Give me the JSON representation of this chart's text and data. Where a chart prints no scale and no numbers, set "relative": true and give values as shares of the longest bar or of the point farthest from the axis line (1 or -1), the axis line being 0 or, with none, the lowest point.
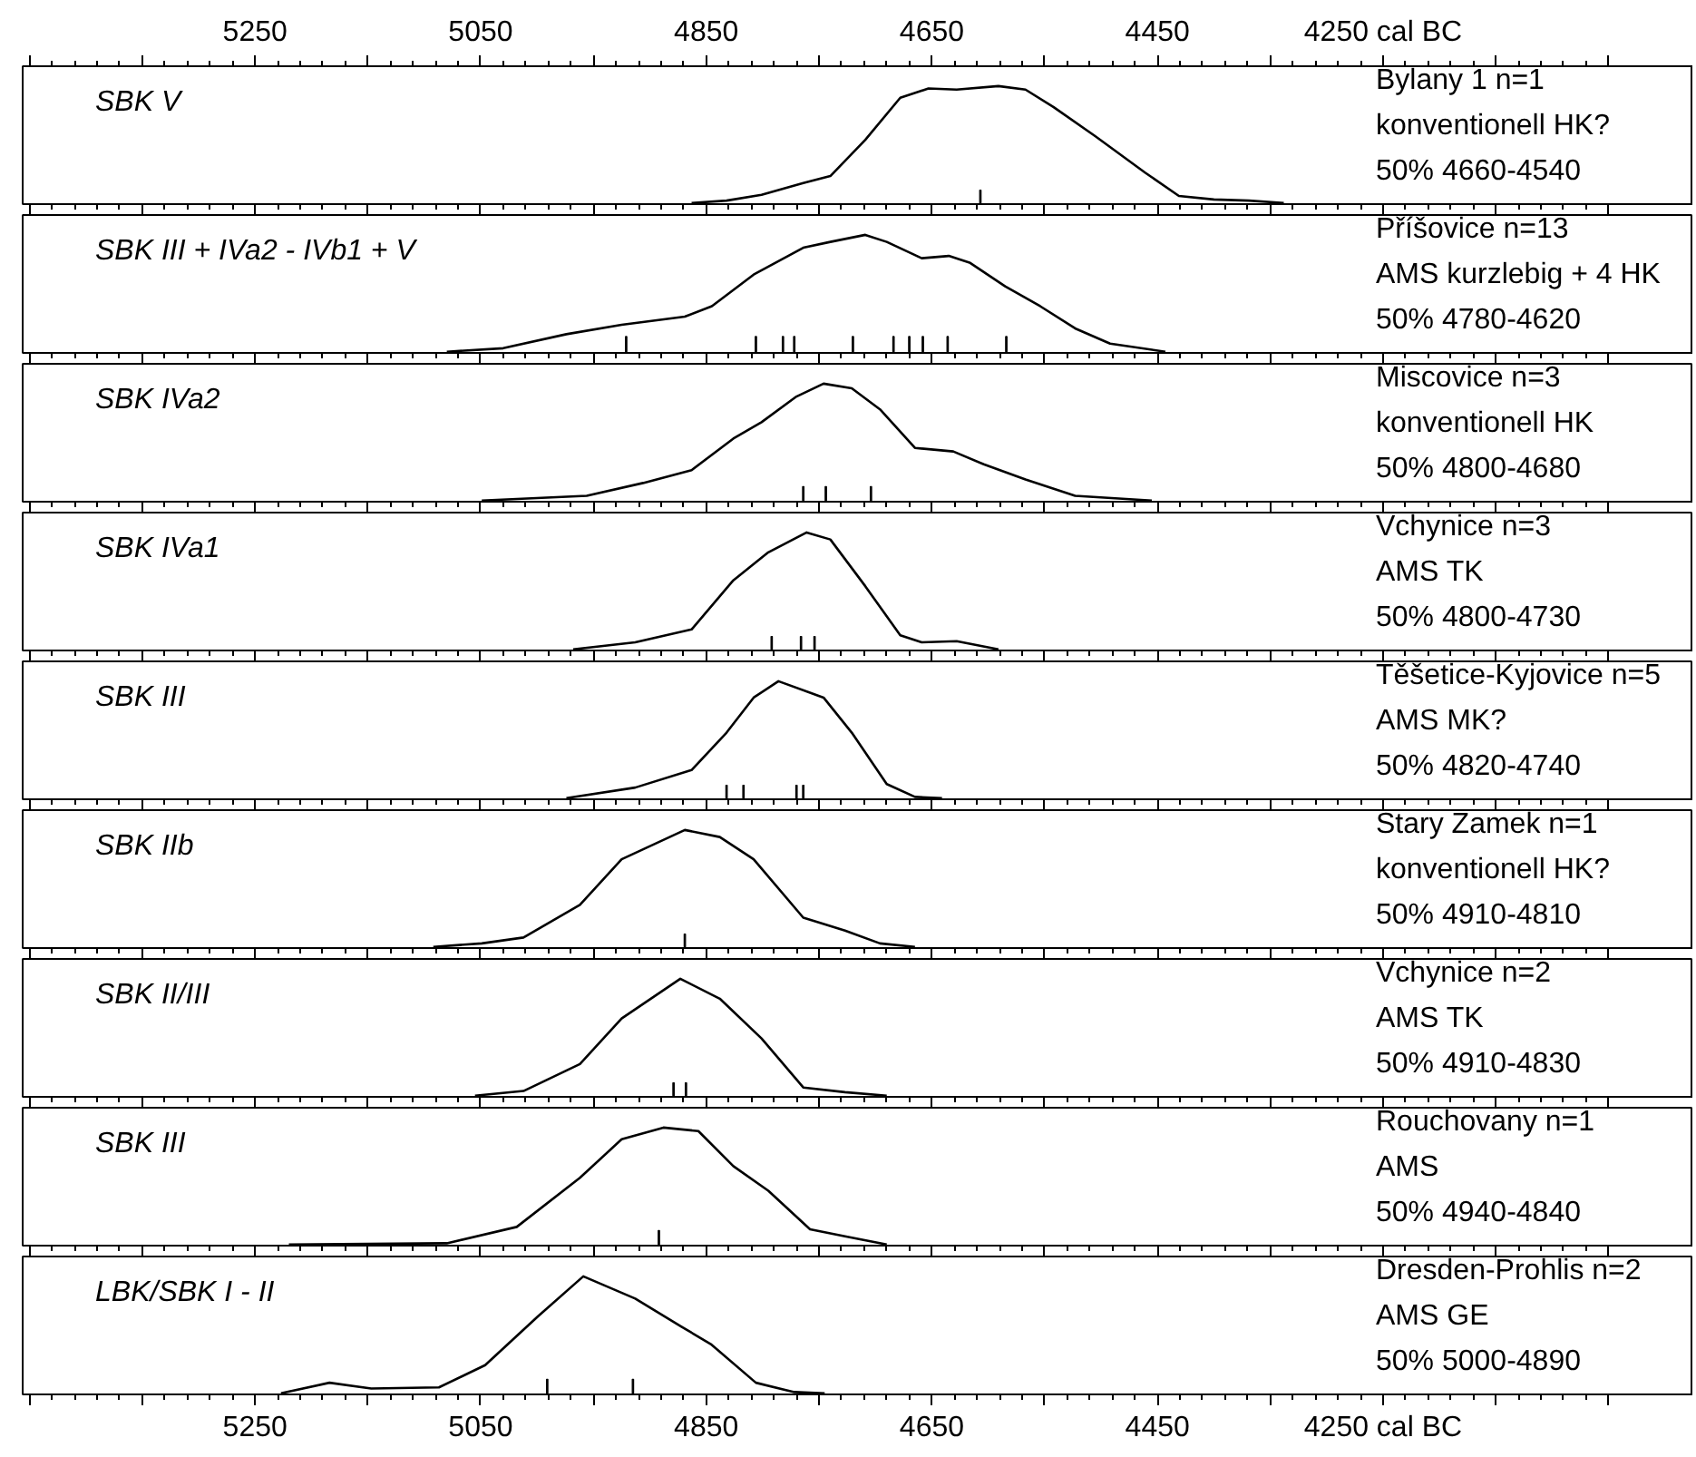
{
  "chart_data": [
    {
      "type": "line",
      "title": "SBK V",
      "annotations": [
        "Bylany 1  n=1",
        "konventionell HK?",
        "50% 4660-4540"
      ],
      "relative": true,
      "xlim": [
        5456,
        3975
      ],
      "tick_labels": "x",
      "xticks": [
        {
          "value": 5450,
          "label": null
        },
        {
          "value": 5350,
          "label": null
        },
        5250,
        {
          "value": 5150,
          "label": null
        },
        5050,
        {
          "value": 4950,
          "label": null
        },
        4850,
        {
          "value": 4750,
          "label": null
        },
        4650,
        {
          "value": 4550,
          "label": null
        },
        4450,
        {
          "value": 4350,
          "label": null
        },
        {
          "value": 4250,
          "label": "4250 cal BC"
        },
        {
          "value": 4150,
          "label": null
        },
        {
          "value": 4050,
          "label": null
        }
      ],
      "series": [
        {
          "color": "#000000",
          "x": [
            4863,
            4832,
            4801,
            4764,
            4740,
            4709,
            4678,
            4653,
            4628,
            4591,
            4567,
            4542,
            4505,
            4461,
            4431,
            4400,
            4369,
            4338
          ],
          "values": [
            0,
            0.02,
            0.07,
            0.17,
            0.23,
            0.54,
            0.9,
            0.98,
            0.97,
            1.0,
            0.97,
            0.82,
            0.57,
            0.26,
            0.06,
            0.03,
            0.02,
            0
          ]
        },
        {
          "type": "bar",
          "color": "#000000",
          "x": [
            4607
          ],
          "values": [
            0.11
          ]
        }
      ]
    },
    {
      "type": "line",
      "title": "SBK III + IVa2 - IVb1 + V",
      "annotations": [
        "Příšovice n=13",
        "AMS kurzlebig + 4 HK",
        "50% 4780-4620"
      ],
      "relative": true,
      "xlim": [
        5456,
        3975
      ],
      "tick_labels": false,
      "xticks": [
        {
          "value": 5450,
          "label": null
        },
        {
          "value": 5350,
          "label": null
        },
        {
          "value": 5250,
          "label": null
        },
        {
          "value": 5150,
          "label": null
        },
        {
          "value": 5050,
          "label": null
        },
        {
          "value": 4950,
          "label": null
        },
        {
          "value": 4850,
          "label": null
        },
        {
          "value": 4750,
          "label": null
        },
        {
          "value": 4650,
          "label": null
        },
        {
          "value": 4550,
          "label": null
        },
        {
          "value": 4450,
          "label": null
        },
        {
          "value": 4350,
          "label": null
        },
        {
          "value": 4250,
          "label": null
        },
        {
          "value": 4150,
          "label": null
        },
        {
          "value": 4050,
          "label": null
        }
      ],
      "series": [
        {
          "color": "#000000",
          "x": [
            5080,
            5030,
            4974,
            4925,
            4869,
            4845,
            4808,
            4764,
            4740,
            4709,
            4690,
            4659,
            4635,
            4616,
            4585,
            4554,
            4523,
            4492,
            4443
          ],
          "values": [
            0,
            0.03,
            0.15,
            0.23,
            0.3,
            0.39,
            0.66,
            0.89,
            0.94,
            1.0,
            0.94,
            0.8,
            0.82,
            0.76,
            0.56,
            0.39,
            0.2,
            0.07,
            0
          ]
        },
        {
          "type": "bar",
          "color": "#000000",
          "x": [
            4921,
            4806,
            4782,
            4772,
            4720,
            4684,
            4670,
            4658,
            4636,
            4584
          ],
          "values": [
            0.13,
            0.13,
            0.13,
            0.13,
            0.13,
            0.13,
            0.13,
            0.13,
            0.13,
            0.13
          ]
        }
      ]
    },
    {
      "type": "line",
      "title": "SBK IVa2",
      "annotations": [
        "Miscovice  n=3",
        "konventionell HK",
        "50% 4800-4680"
      ],
      "relative": true,
      "xlim": [
        5456,
        3975
      ],
      "tick_labels": false,
      "xticks": [
        {
          "value": 5450,
          "label": null
        },
        {
          "value": 5350,
          "label": null
        },
        {
          "value": 5250,
          "label": null
        },
        {
          "value": 5150,
          "label": null
        },
        {
          "value": 5050,
          "label": null
        },
        {
          "value": 4950,
          "label": null
        },
        {
          "value": 4850,
          "label": null
        },
        {
          "value": 4750,
          "label": null
        },
        {
          "value": 4650,
          "label": null
        },
        {
          "value": 4550,
          "label": null
        },
        {
          "value": 4450,
          "label": null
        },
        {
          "value": 4350,
          "label": null
        },
        {
          "value": 4250,
          "label": null
        },
        {
          "value": 4150,
          "label": null
        },
        {
          "value": 4050,
          "label": null
        }
      ],
      "series": [
        {
          "color": "#000000",
          "x": [
            5049,
            4956,
            4906,
            4863,
            4826,
            4801,
            4770,
            4746,
            4721,
            4696,
            4665,
            4631,
            4604,
            4567,
            4523,
            4455
          ],
          "values": [
            0,
            0.04,
            0.15,
            0.26,
            0.53,
            0.67,
            0.89,
            1.0,
            0.96,
            0.78,
            0.45,
            0.42,
            0.31,
            0.18,
            0.04,
            0
          ]
        },
        {
          "type": "bar",
          "color": "#000000",
          "x": [
            4764,
            4744,
            4704
          ],
          "values": [
            0.12,
            0.12,
            0.12
          ]
        }
      ]
    },
    {
      "type": "line",
      "title": "SBK IVa1",
      "annotations": [
        "Vchynice n=3",
        "AMS TK",
        "50% 4800-4730"
      ],
      "relative": true,
      "xlim": [
        5456,
        3975
      ],
      "tick_labels": false,
      "xticks": [
        {
          "value": 5450,
          "label": null
        },
        {
          "value": 5350,
          "label": null
        },
        {
          "value": 5250,
          "label": null
        },
        {
          "value": 5150,
          "label": null
        },
        {
          "value": 5050,
          "label": null
        },
        {
          "value": 4950,
          "label": null
        },
        {
          "value": 4850,
          "label": null
        },
        {
          "value": 4750,
          "label": null
        },
        {
          "value": 4650,
          "label": null
        },
        {
          "value": 4550,
          "label": null
        },
        {
          "value": 4450,
          "label": null
        },
        {
          "value": 4350,
          "label": null
        },
        {
          "value": 4250,
          "label": null
        },
        {
          "value": 4150,
          "label": null
        },
        {
          "value": 4050,
          "label": null
        }
      ],
      "series": [
        {
          "color": "#000000",
          "x": [
            4968,
            4913,
            4863,
            4826,
            4795,
            4761,
            4740,
            4709,
            4678,
            4659,
            4628,
            4591
          ],
          "values": [
            0,
            0.06,
            0.17,
            0.59,
            0.83,
            1.0,
            0.94,
            0.54,
            0.12,
            0.06,
            0.07,
            0
          ]
        },
        {
          "type": "bar",
          "color": "#000000",
          "x": [
            4792,
            4766,
            4754
          ],
          "values": [
            0.11,
            0.11,
            0.11
          ]
        }
      ]
    },
    {
      "type": "line",
      "title": "SBK III",
      "annotations": [
        "Těšetice-Kyjovice  n=5",
        "AMS MK?",
        "50% 4820-4740"
      ],
      "relative": true,
      "xlim": [
        5456,
        3975
      ],
      "tick_labels": false,
      "xticks": [
        {
          "value": 5450,
          "label": null
        },
        {
          "value": 5350,
          "label": null
        },
        {
          "value": 5250,
          "label": null
        },
        {
          "value": 5150,
          "label": null
        },
        {
          "value": 5050,
          "label": null
        },
        {
          "value": 4950,
          "label": null
        },
        {
          "value": 4850,
          "label": null
        },
        {
          "value": 4750,
          "label": null
        },
        {
          "value": 4650,
          "label": null
        },
        {
          "value": 4550,
          "label": null
        },
        {
          "value": 4450,
          "label": null
        },
        {
          "value": 4350,
          "label": null
        },
        {
          "value": 4250,
          "label": null
        },
        {
          "value": 4150,
          "label": null
        },
        {
          "value": 4050,
          "label": null
        }
      ],
      "series": [
        {
          "color": "#000000",
          "x": [
            4974,
            4913,
            4863,
            4832,
            4808,
            4786,
            4746,
            4721,
            4690,
            4665,
            4641
          ],
          "values": [
            0,
            0.09,
            0.24,
            0.56,
            0.86,
            1.0,
            0.86,
            0.56,
            0.12,
            0.01,
            0
          ]
        },
        {
          "type": "bar",
          "color": "#000000",
          "x": [
            4832,
            4817,
            4770,
            4764
          ],
          "values": [
            0.11,
            0.11,
            0.11,
            0.11
          ]
        }
      ]
    },
    {
      "type": "line",
      "title": "SBK IIb",
      "annotations": [
        "Stary Zamek  n=1",
        "konventionell HK?",
        "50% 4910-4810"
      ],
      "relative": true,
      "xlim": [
        5456,
        3975
      ],
      "tick_labels": false,
      "xticks": [
        {
          "value": 5450,
          "label": null
        },
        {
          "value": 5350,
          "label": null
        },
        {
          "value": 5250,
          "label": null
        },
        {
          "value": 5150,
          "label": null
        },
        {
          "value": 5050,
          "label": null
        },
        {
          "value": 4950,
          "label": null
        },
        {
          "value": 4850,
          "label": null
        },
        {
          "value": 4750,
          "label": null
        },
        {
          "value": 4650,
          "label": null
        },
        {
          "value": 4550,
          "label": null
        },
        {
          "value": 4450,
          "label": null
        },
        {
          "value": 4350,
          "label": null
        },
        {
          "value": 4250,
          "label": null
        },
        {
          "value": 4150,
          "label": null
        },
        {
          "value": 4050,
          "label": null
        }
      ],
      "series": [
        {
          "color": "#000000",
          "x": [
            5092,
            5049,
            5012,
            4962,
            4925,
            4869,
            4838,
            4808,
            4764,
            4727,
            4696,
            4665
          ],
          "values": [
            0,
            0.03,
            0.08,
            0.36,
            0.75,
            1.0,
            0.94,
            0.75,
            0.25,
            0.14,
            0.03,
            0
          ]
        },
        {
          "type": "bar",
          "color": "#000000",
          "x": [
            4869
          ],
          "values": [
            0.11
          ]
        }
      ]
    },
    {
      "type": "line",
      "title": "SBK II/III",
      "annotations": [
        "Vchynice n=2",
        "AMS TK",
        "50% 4910-4830"
      ],
      "relative": true,
      "xlim": [
        5456,
        3975
      ],
      "tick_labels": false,
      "xticks": [
        {
          "value": 5450,
          "label": null
        },
        {
          "value": 5350,
          "label": null
        },
        {
          "value": 5250,
          "label": null
        },
        {
          "value": 5150,
          "label": null
        },
        {
          "value": 5050,
          "label": null
        },
        {
          "value": 4950,
          "label": null
        },
        {
          "value": 4850,
          "label": null
        },
        {
          "value": 4750,
          "label": null
        },
        {
          "value": 4650,
          "label": null
        },
        {
          "value": 4550,
          "label": null
        },
        {
          "value": 4450,
          "label": null
        },
        {
          "value": 4350,
          "label": null
        },
        {
          "value": 4250,
          "label": null
        },
        {
          "value": 4150,
          "label": null
        },
        {
          "value": 4050,
          "label": null
        }
      ],
      "series": [
        {
          "color": "#000000",
          "x": [
            5055,
            5012,
            4962,
            4925,
            4873,
            4838,
            4801,
            4764,
            4727,
            4690
          ],
          "values": [
            0,
            0.04,
            0.27,
            0.66,
            1.0,
            0.83,
            0.49,
            0.07,
            0.03,
            0
          ]
        },
        {
          "type": "bar",
          "color": "#000000",
          "x": [
            4879,
            4868
          ],
          "values": [
            0.11,
            0.11
          ]
        }
      ]
    },
    {
      "type": "line",
      "title": "SBK III",
      "annotations": [
        "Rouchovany n=1",
        "AMS",
        "50% 4940-4840"
      ],
      "relative": true,
      "xlim": [
        5456,
        3975
      ],
      "tick_labels": false,
      "xticks": [
        {
          "value": 5450,
          "label": null
        },
        {
          "value": 5350,
          "label": null
        },
        {
          "value": 5250,
          "label": null
        },
        {
          "value": 5150,
          "label": null
        },
        {
          "value": 5050,
          "label": null
        },
        {
          "value": 4950,
          "label": null
        },
        {
          "value": 4850,
          "label": null
        },
        {
          "value": 4750,
          "label": null
        },
        {
          "value": 4650,
          "label": null
        },
        {
          "value": 4550,
          "label": null
        },
        {
          "value": 4450,
          "label": null
        },
        {
          "value": 4350,
          "label": null
        },
        {
          "value": 4250,
          "label": null
        },
        {
          "value": 4150,
          "label": null
        },
        {
          "value": 4050,
          "label": null
        }
      ],
      "series": [
        {
          "color": "#000000",
          "x": [
            5220,
            5080,
            5018,
            4962,
            4925,
            4888,
            4857,
            4826,
            4795,
            4758,
            4727,
            4690
          ],
          "values": [
            0,
            0.01,
            0.15,
            0.57,
            0.9,
            1.0,
            0.97,
            0.67,
            0.46,
            0.13,
            0.07,
            0
          ]
        },
        {
          "type": "bar",
          "color": "#000000",
          "x": [
            4892
          ],
          "values": [
            0.12
          ]
        }
      ]
    },
    {
      "type": "line",
      "title": "LBK/SBK I - II",
      "annotations": [
        "Dresden-Prohlis n=2",
        "AMS GE",
        "50% 5000-4890"
      ],
      "relative": true,
      "xlim": [
        5456,
        3975
      ],
      "tick_labels": "x",
      "xticks": [
        {
          "value": 5450,
          "label": null
        },
        {
          "value": 5350,
          "label": null
        },
        5250,
        {
          "value": 5150,
          "label": null
        },
        5050,
        {
          "value": 4950,
          "label": null
        },
        4850,
        {
          "value": 4750,
          "label": null
        },
        4650,
        {
          "value": 4550,
          "label": null
        },
        4450,
        {
          "value": 4350,
          "label": null
        },
        {
          "value": 4250,
          "label": "4250 cal BC"
        },
        {
          "value": 4150,
          "label": null
        },
        {
          "value": 4050,
          "label": null
        }
      ],
      "series": [
        {
          "color": "#000000",
          "x": [
            5227,
            5184,
            5147,
            5087,
            5046,
            4999,
            4959,
            4913,
            4872,
            4846,
            4806,
            4772,
            4745
          ],
          "values": [
            0,
            0.09,
            0.04,
            0.05,
            0.24,
            0.66,
            1.0,
            0.81,
            0.57,
            0.42,
            0.09,
            0.01,
            0
          ]
        },
        {
          "type": "bar",
          "color": "#000000",
          "x": [
            4991,
            4915
          ],
          "values": [
            0.12,
            0.12
          ]
        }
      ]
    }
  ]
}
